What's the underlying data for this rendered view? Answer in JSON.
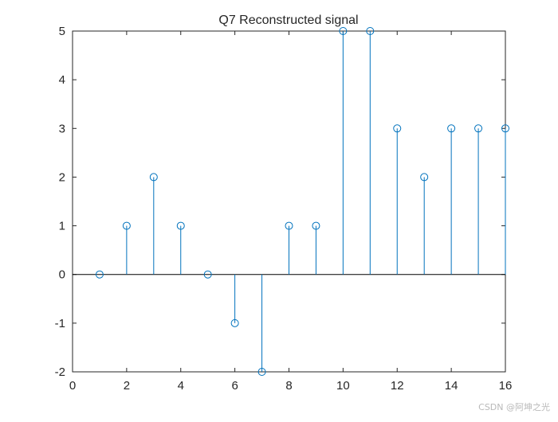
{
  "chart_data": {
    "type": "stem",
    "title": "Q7 Reconstructed signal",
    "xlabel": "",
    "ylabel": "",
    "x": [
      1,
      2,
      3,
      4,
      5,
      6,
      7,
      8,
      9,
      10,
      11,
      12,
      13,
      14,
      15,
      16
    ],
    "y": [
      0,
      1,
      2,
      1,
      0,
      -1,
      -2,
      1,
      1,
      5,
      5,
      3,
      2,
      3,
      3,
      3
    ],
    "xlim": [
      0,
      16
    ],
    "ylim": [
      -2,
      5
    ],
    "xticks": [
      "0",
      "2",
      "4",
      "6",
      "8",
      "10",
      "12",
      "14",
      "16"
    ],
    "yticks": [
      "-2",
      "-1",
      "0",
      "1",
      "2",
      "3",
      "4",
      "5"
    ],
    "grid": false,
    "marker": "open-circle",
    "colors": {
      "series": "#0072bd",
      "axes": "#262626",
      "baseline": "#000000"
    }
  },
  "watermark": "CSDN @阿坤之光"
}
